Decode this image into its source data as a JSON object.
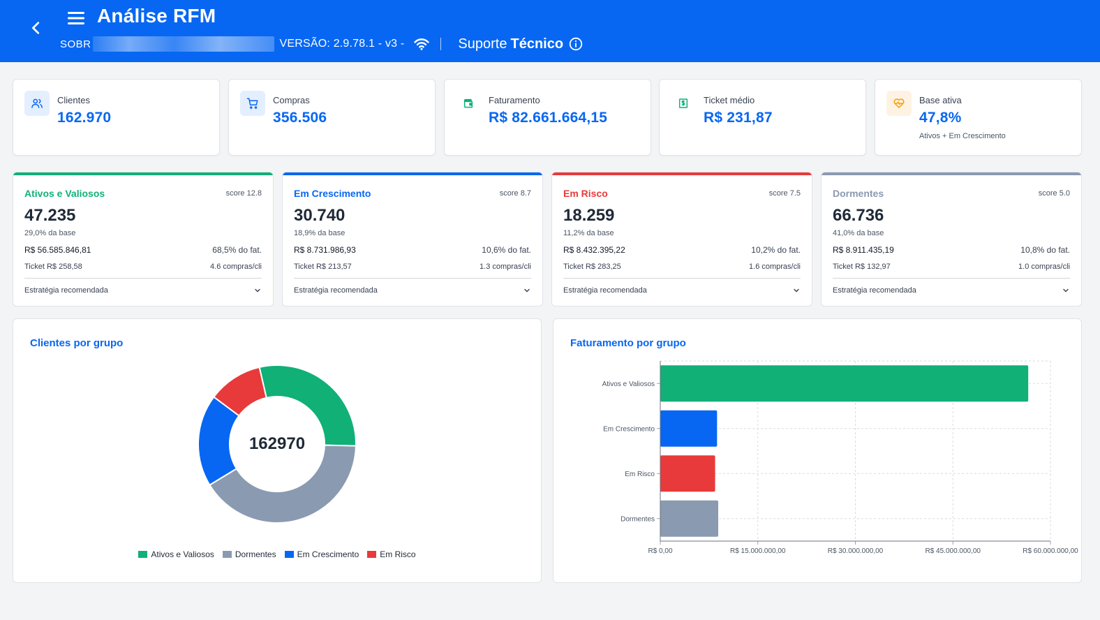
{
  "header": {
    "title": "Análise RFM",
    "company_prefix": "SOBR",
    "version_text": "VERSÃO:  2.9.78.1 - v3 -",
    "support_prefix": "Suporte",
    "support_bold": "Técnico",
    "icons": [
      "back-arrow-icon",
      "menu-icon",
      "wifi-icon",
      "info-icon"
    ]
  },
  "kpis": [
    {
      "label": "Clientes",
      "value": "162.970",
      "note": "",
      "icon": "users-icon",
      "icon_bg": "#e3eefe",
      "icon_color": "#0767f2"
    },
    {
      "label": "Compras",
      "value": "356.506",
      "note": "",
      "icon": "cart-icon",
      "icon_bg": "#e3eefe",
      "icon_color": "#0767f2"
    },
    {
      "label": "Faturamento",
      "value": "R$ 82.661.664,15",
      "note": "",
      "icon": "wallet-icon",
      "icon_bg": "#ffffff",
      "icon_color": "#10b077"
    },
    {
      "label": "Ticket médio",
      "value": "R$ 231,87",
      "note": "",
      "icon": "dollar-bill-icon",
      "icon_bg": "#ffffff",
      "icon_color": "#10b077"
    },
    {
      "label": "Base ativa",
      "value": "47,8%",
      "note": "Ativos + Em Crescimento",
      "icon": "heart-pulse-icon",
      "icon_bg": "#fef3e2",
      "icon_color": "#f59e0b"
    }
  ],
  "segments": [
    {
      "name": "Ativos e Valiosos",
      "color": "#10b077",
      "score": "score 12.8",
      "count": "47.235",
      "share": "29,0% da base",
      "revenue": "R$ 56.585.846,81",
      "revenue_pct": "68,5% do fat.",
      "ticket": "Ticket R$ 258,58",
      "frequency": "4.6 compras/cli",
      "strategy_label": "Estratégia recomendada"
    },
    {
      "name": "Em Crescimento",
      "color": "#0767f2",
      "score": "score 8.7",
      "count": "30.740",
      "share": "18,9% da base",
      "revenue": "R$ 8.731.986,93",
      "revenue_pct": "10,6% do fat.",
      "ticket": "Ticket R$ 213,57",
      "frequency": "1.3 compras/cli",
      "strategy_label": "Estratégia recomendada"
    },
    {
      "name": "Em Risco",
      "color": "#e83a3a",
      "score": "score 7.5",
      "count": "18.259",
      "share": "11,2% da base",
      "revenue": "R$ 8.432.395,22",
      "revenue_pct": "10,2% do fat.",
      "ticket": "Ticket R$ 283,25",
      "frequency": "1.6 compras/cli",
      "strategy_label": "Estratégia recomendada"
    },
    {
      "name": "Dormentes",
      "color": "#8a9ab0",
      "score": "score 5.0",
      "count": "66.736",
      "share": "41,0% da base",
      "revenue": "R$ 8.911.435,19",
      "revenue_pct": "10,8% do fat.",
      "ticket": "Ticket R$ 132,97",
      "frequency": "1.0 compras/cli",
      "strategy_label": "Estratégia recomendada"
    }
  ],
  "charts": {
    "donut_title": "Clientes por grupo",
    "bar_title": "Faturamento por grupo"
  },
  "chart_data": [
    {
      "type": "pie",
      "title": "Clientes por grupo",
      "center_label": "162970",
      "categories": [
        "Ativos e Valiosos",
        "Dormentes",
        "Em Crescimento",
        "Em Risco"
      ],
      "values": [
        47235,
        66736,
        30740,
        18259
      ],
      "colors": [
        "#10b077",
        "#8a9ab0",
        "#0767f2",
        "#e83a3a"
      ],
      "legend_position": "bottom"
    },
    {
      "type": "bar",
      "orientation": "horizontal",
      "title": "Faturamento por grupo",
      "categories": [
        "Ativos e Valiosos",
        "Em Crescimento",
        "Em Risco",
        "Dormentes"
      ],
      "values": [
        56585846.81,
        8731986.93,
        8432395.22,
        8911435.19
      ],
      "colors": [
        "#10b077",
        "#0767f2",
        "#e83a3a",
        "#8a9ab0"
      ],
      "xlim": [
        0,
        60000000
      ],
      "xticks": [
        0,
        15000000,
        30000000,
        45000000,
        60000000
      ],
      "xtick_labels": [
        "R$ 0,00",
        "R$ 15.000.000,00",
        "R$ 30.000.000,00",
        "R$ 45.000.000,00",
        "R$ 60.000.000,00"
      ],
      "grid": true
    }
  ]
}
